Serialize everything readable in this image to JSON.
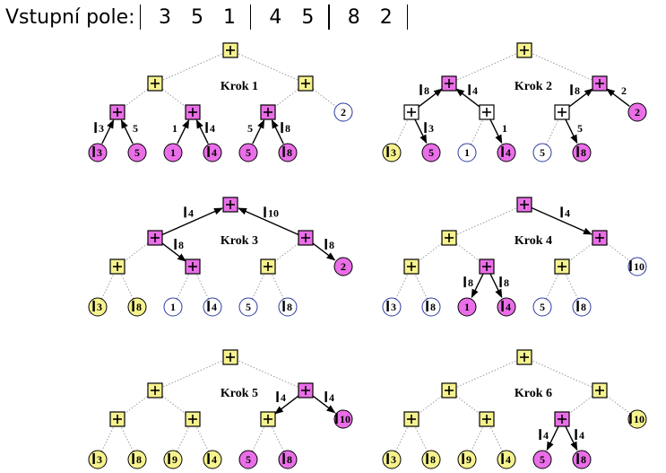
{
  "header": {
    "label": "Vstupní pole:",
    "groups": [
      [
        "3",
        "5",
        "1"
      ],
      [
        "4",
        "5"
      ],
      [
        "8",
        "2"
      ]
    ]
  },
  "colors": {
    "yellow": "#f6f28e",
    "magenta": "#ea6ee8",
    "white": "#ffffff",
    "blue_stroke": "#2b3a9e",
    "black": "#000000",
    "gray_edge": "#999999"
  },
  "steps": [
    {
      "caption": "Krok 1",
      "nodes": {
        "root": {
          "c": "yellow"
        },
        "L": {
          "c": "yellow"
        },
        "R": {
          "c": "yellow"
        },
        "LL": {
          "c": "magenta"
        },
        "LR": {
          "c": "magenta"
        },
        "RL": {
          "c": "magenta"
        },
        "RR": {
          "c": "white",
          "text": "2"
        },
        "l1": {
          "c": "magenta",
          "text": "3",
          "bar": true
        },
        "l2": {
          "c": "magenta",
          "text": "5"
        },
        "l3": {
          "c": "magenta",
          "text": "1"
        },
        "l4": {
          "c": "magenta",
          "text": "4",
          "bar": true
        },
        "l5": {
          "c": "magenta",
          "text": "5"
        },
        "l6": {
          "c": "magenta",
          "text": "8",
          "bar": true
        }
      },
      "edges": [
        {
          "from": "l1",
          "to": "LL",
          "label": "3",
          "bar": true,
          "side": "left"
        },
        {
          "from": "l2",
          "to": "LL",
          "label": "5",
          "side": "right"
        },
        {
          "from": "l3",
          "to": "LR",
          "label": "1",
          "side": "left"
        },
        {
          "from": "l4",
          "to": "LR",
          "label": "4",
          "bar": true,
          "side": "right"
        },
        {
          "from": "l5",
          "to": "RL",
          "label": "5",
          "side": "left"
        },
        {
          "from": "l6",
          "to": "RL",
          "label": "8",
          "bar": true,
          "side": "right"
        }
      ]
    },
    {
      "caption": "Krok 2",
      "nodes": {
        "root": {
          "c": "yellow"
        },
        "L": {
          "c": "magenta"
        },
        "R": {
          "c": "magenta"
        },
        "LL": {
          "c": "white"
        },
        "LR": {
          "c": "white"
        },
        "RL": {
          "c": "white"
        },
        "RR": {
          "c": "magenta",
          "text": "2"
        },
        "l1": {
          "c": "yellow",
          "text": "3",
          "bar": true
        },
        "l2": {
          "c": "magenta",
          "text": "5"
        },
        "l3": {
          "c": "white",
          "text": "1"
        },
        "l4": {
          "c": "magenta",
          "text": "4",
          "bar": true
        },
        "l5": {
          "c": "white",
          "text": "5"
        },
        "l6": {
          "c": "magenta",
          "text": "8",
          "bar": true
        }
      },
      "edges": [
        {
          "from": "LL",
          "to": "L",
          "label": "8",
          "bar": true,
          "side": "left"
        },
        {
          "from": "LR",
          "to": "L",
          "label": "4",
          "bar": true,
          "side": "right"
        },
        {
          "from": "LL",
          "to": "l2",
          "label": "3",
          "bar": true,
          "side": "right"
        },
        {
          "from": "LR",
          "to": "l4",
          "label": "1",
          "side": "right"
        },
        {
          "from": "RL",
          "to": "R",
          "label": "8",
          "bar": true,
          "side": "left"
        },
        {
          "from": "RR",
          "to": "R",
          "label": "2",
          "side": "right"
        },
        {
          "from": "RL",
          "to": "l6",
          "label": "5",
          "side": "right"
        }
      ]
    },
    {
      "caption": "Krok 3",
      "nodes": {
        "root": {
          "c": "magenta"
        },
        "L": {
          "c": "magenta"
        },
        "R": {
          "c": "magenta"
        },
        "LL": {
          "c": "yellow"
        },
        "LR": {
          "c": "magenta"
        },
        "RL": {
          "c": "yellow"
        },
        "RR": {
          "c": "magenta",
          "text": "2"
        },
        "l1": {
          "c": "yellow",
          "text": "3",
          "bar": true
        },
        "l2": {
          "c": "yellow",
          "text": "8",
          "bar": true
        },
        "l3": {
          "c": "white",
          "text": "1"
        },
        "l4": {
          "c": "white",
          "text": "4",
          "bar": true
        },
        "l5": {
          "c": "white",
          "text": "5"
        },
        "l6": {
          "c": "white",
          "text": "8",
          "bar": true
        }
      },
      "edges": [
        {
          "from": "L",
          "to": "root",
          "label": "4",
          "bar": true,
          "side": "left"
        },
        {
          "from": "R",
          "to": "root",
          "label": "10",
          "bar": true,
          "side": "right"
        },
        {
          "from": "L",
          "to": "LR",
          "label": "8",
          "bar": true,
          "side": "right"
        },
        {
          "from": "R",
          "to": "RR",
          "label": "8",
          "bar": true,
          "side": "right"
        }
      ]
    },
    {
      "caption": "Krok 4",
      "nodes": {
        "root": {
          "c": "magenta"
        },
        "L": {
          "c": "yellow"
        },
        "R": {
          "c": "magenta"
        },
        "LL": {
          "c": "yellow"
        },
        "LR": {
          "c": "magenta"
        },
        "RL": {
          "c": "yellow"
        },
        "RR": {
          "c": "white",
          "text": "10",
          "bar": true
        },
        "l1": {
          "c": "white",
          "text": "3",
          "bar": true
        },
        "l2": {
          "c": "white",
          "text": "8",
          "bar": true
        },
        "l3": {
          "c": "magenta",
          "text": "1"
        },
        "l4": {
          "c": "magenta",
          "text": "4",
          "bar": true
        },
        "l5": {
          "c": "white",
          "text": "5"
        },
        "l6": {
          "c": "white",
          "text": "8",
          "bar": true
        }
      },
      "edges": [
        {
          "from": "root",
          "to": "R",
          "label": "4",
          "bar": true,
          "side": "right"
        },
        {
          "from": "LR",
          "to": "l3",
          "label": "8",
          "bar": true,
          "side": "left"
        },
        {
          "from": "LR",
          "to": "l4",
          "label": "8",
          "bar": true,
          "side": "right"
        }
      ]
    },
    {
      "caption": "Krok 5",
      "nodes": {
        "root": {
          "c": "yellow"
        },
        "L": {
          "c": "yellow"
        },
        "R": {
          "c": "magenta"
        },
        "LL": {
          "c": "yellow"
        },
        "LR": {
          "c": "yellow"
        },
        "RL": {
          "c": "yellow"
        },
        "RR": {
          "c": "magenta",
          "text": "10",
          "bar": true
        },
        "l1": {
          "c": "yellow",
          "text": "3",
          "bar": true
        },
        "l2": {
          "c": "yellow",
          "text": "8",
          "bar": true
        },
        "l3": {
          "c": "yellow",
          "text": "9",
          "bar": true
        },
        "l4": {
          "c": "yellow",
          "text": "4",
          "bar": true
        },
        "l5": {
          "c": "magenta",
          "text": "5"
        },
        "l6": {
          "c": "magenta",
          "text": "8",
          "bar": true
        }
      },
      "edges": [
        {
          "from": "R",
          "to": "RL",
          "label": "4",
          "bar": true,
          "side": "left"
        },
        {
          "from": "R",
          "to": "RR",
          "label": "4",
          "bar": true,
          "side": "right"
        }
      ]
    },
    {
      "caption": "Krok 6",
      "nodes": {
        "root": {
          "c": "yellow"
        },
        "L": {
          "c": "yellow"
        },
        "R": {
          "c": "yellow"
        },
        "LL": {
          "c": "yellow"
        },
        "LR": {
          "c": "yellow"
        },
        "RL": {
          "c": "magenta"
        },
        "RR": {
          "c": "yellow",
          "text": "10",
          "bar": true
        },
        "l1": {
          "c": "yellow",
          "text": "3",
          "bar": true
        },
        "l2": {
          "c": "yellow",
          "text": "8",
          "bar": true
        },
        "l3": {
          "c": "yellow",
          "text": "9",
          "bar": true
        },
        "l4": {
          "c": "yellow",
          "text": "4",
          "bar": true
        },
        "l5": {
          "c": "magenta",
          "text": "5"
        },
        "l6": {
          "c": "magenta",
          "text": "8",
          "bar": true
        }
      },
      "edges": [
        {
          "from": "RL",
          "to": "l5",
          "label": "4",
          "bar": true,
          "side": "left"
        },
        {
          "from": "RL",
          "to": "l6",
          "label": "4",
          "bar": true,
          "side": "right"
        }
      ]
    }
  ]
}
